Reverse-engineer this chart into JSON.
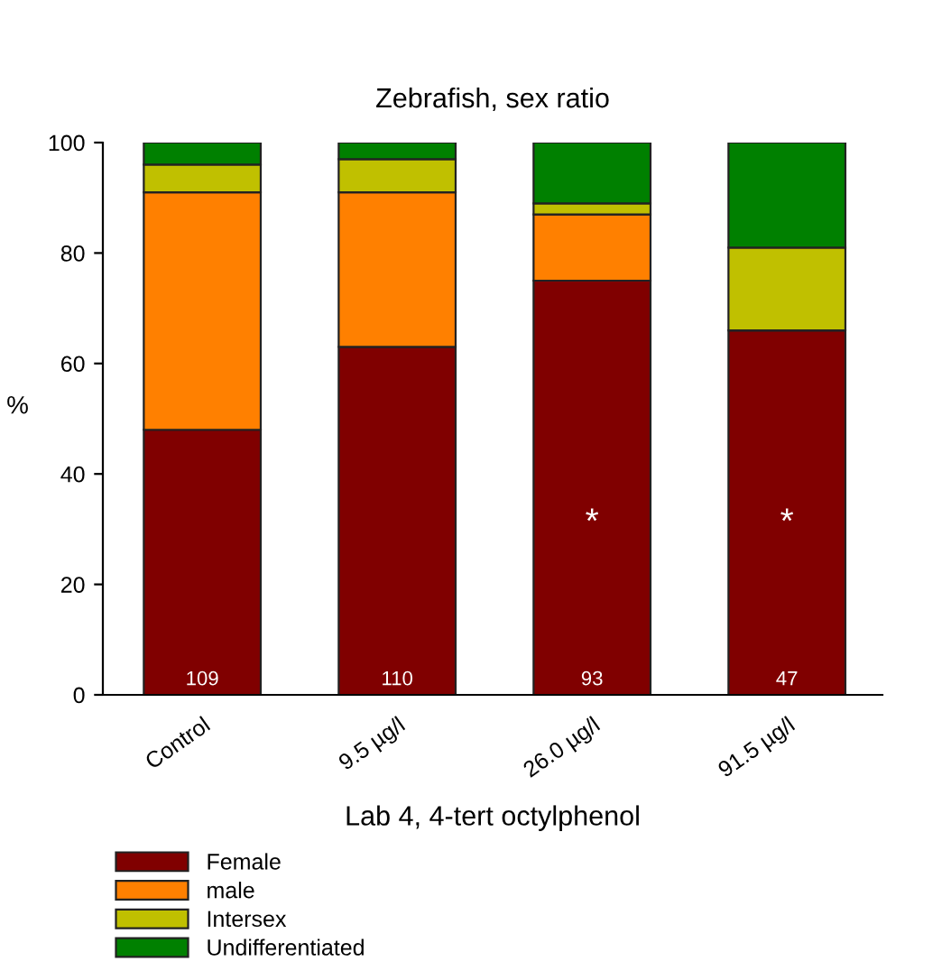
{
  "chart_data": {
    "type": "bar",
    "title": "Zebrafish, sex ratio",
    "xlabel": "Lab 4, 4-tert octylphenol",
    "ylabel": "%",
    "stacked": true,
    "categories": [
      "Control",
      "9.5 µg/l",
      "26.0 µg/l",
      "91.5 µg/l"
    ],
    "series": [
      {
        "name": "Female",
        "color": "#800000",
        "values": [
          48,
          63,
          75,
          66
        ]
      },
      {
        "name": "male",
        "color": "#ff8000",
        "values": [
          43,
          28,
          12,
          0
        ]
      },
      {
        "name": "Intersex",
        "color": "#c0c000",
        "values": [
          5,
          6,
          2,
          15
        ]
      },
      {
        "name": "Undifferentiated",
        "color": "#008000",
        "values": [
          4,
          3,
          11,
          19
        ]
      }
    ],
    "ylim": [
      0,
      100
    ],
    "yticks": [
      0,
      20,
      40,
      60,
      80,
      100
    ],
    "grid": false,
    "legend": "bottom",
    "annotations": [
      "109",
      "110",
      "93",
      "47",
      "*",
      "*"
    ]
  }
}
